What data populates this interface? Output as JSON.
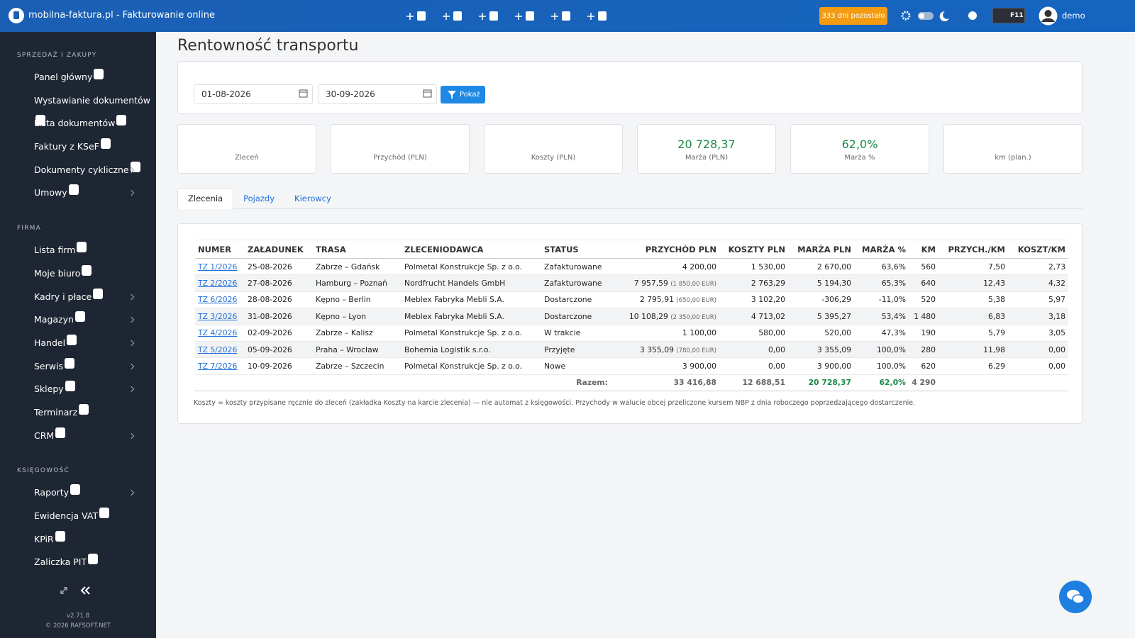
{
  "header": {
    "brand": "mobilna-faktura.pl - Fakturowanie online",
    "trial": "333 dni pozostało",
    "f11": "F11",
    "user": "demo"
  },
  "sidebar": {
    "sections": [
      {
        "title": "SPRZEDAŻ I ZAKUPY",
        "items": [
          {
            "label": "Panel główny"
          },
          {
            "label": "Wystawianie dokumentów"
          },
          {
            "label": "Lista dokumentów"
          },
          {
            "label": "Faktury z KSeF"
          },
          {
            "label": "Dokumenty cykliczne",
            "submenu": true
          },
          {
            "label": "Umowy",
            "submenu": true
          }
        ]
      },
      {
        "title": "FIRMA",
        "items": [
          {
            "label": "Lista firm"
          },
          {
            "label": "Moje biuro"
          },
          {
            "label": "Kadry i płace",
            "submenu": true
          },
          {
            "label": "Magazyn",
            "submenu": true
          },
          {
            "label": "Handel",
            "submenu": true
          },
          {
            "label": "Serwis",
            "submenu": true
          },
          {
            "label": "Sklepy",
            "submenu": true
          },
          {
            "label": "Terminarz"
          },
          {
            "label": "CRM",
            "submenu": true
          }
        ]
      },
      {
        "title": "KSIĘGOWOŚĆ",
        "items": [
          {
            "label": "Raporty",
            "submenu": true
          },
          {
            "label": "Ewidencja VAT"
          },
          {
            "label": "KPiR"
          },
          {
            "label": "Zaliczka PIT"
          }
        ]
      }
    ],
    "version": "v2.71.8",
    "copyright": "© 2026 RAFSOFT.NET"
  },
  "page": {
    "title": "Rentowność transportu",
    "date_from": "01-08-2026",
    "date_to": "30-09-2026",
    "show_button": "Pokaż"
  },
  "stats": [
    {
      "label": "Zleceń"
    },
    {
      "label": "Przychód (PLN)"
    },
    {
      "label": "Koszty (PLN)"
    },
    {
      "value": "20 728,37",
      "label": "Marża (PLN)"
    },
    {
      "value": "62,0%",
      "label": "Marża %"
    },
    {
      "label": "km (plan.)"
    }
  ],
  "tabs": [
    "Zlecenia",
    "Pojazdy",
    "Kierowcy"
  ],
  "table": {
    "headers": [
      "NUMER",
      "ZAŁADUNEK",
      "TRASA",
      "ZLECENIODAWCA",
      "STATUS",
      "PRZYCHÓD PLN",
      "KOSZTY PLN",
      "MARŻA PLN",
      "MARŻA %",
      "KM",
      "PRZYCH./KM",
      "KOSZT/KM"
    ],
    "rows": [
      {
        "cells": [
          "TZ 1/2026",
          "25-08-2026",
          "Zabrze – Gdańsk",
          "Polmetal Konstrukcje Sp. z o.o.",
          "Zafakturowane",
          "4 200,00",
          "1 530,00",
          "2 670,00",
          "63,6%",
          "560",
          "7,50",
          "2,73"
        ]
      },
      {
        "cells": [
          "TZ 2/2026",
          "27-08-2026",
          "Hamburg – Poznań",
          "Nordfrucht Handels GmbH",
          "Zafakturowane",
          "7 957,59",
          "2 763,29",
          "5 194,30",
          "65,3%",
          "640",
          "12,43",
          "4,32"
        ],
        "foreign": "(1 850,00 EUR)"
      },
      {
        "cells": [
          "TZ 6/2026",
          "28-08-2026",
          "Kępno – Berlin",
          "Meblex Fabryka Mebli S.A.",
          "Dostarczone",
          "2 795,91",
          "3 102,20",
          "-306,29",
          "-11,0%",
          "520",
          "5,38",
          "5,97"
        ],
        "foreign": "(650,00 EUR)"
      },
      {
        "cells": [
          "TZ 3/2026",
          "31-08-2026",
          "Kępno – Lyon",
          "Meblex Fabryka Mebli S.A.",
          "Dostarczone",
          "10 108,29",
          "4 713,02",
          "5 395,27",
          "53,4%",
          "1 480",
          "6,83",
          "3,18"
        ],
        "foreign": "(2 350,00 EUR)"
      },
      {
        "cells": [
          "TZ 4/2026",
          "02-09-2026",
          "Zabrze – Kalisz",
          "Polmetal Konstrukcje Sp. z o.o.",
          "W trakcie",
          "1 100,00",
          "580,00",
          "520,00",
          "47,3%",
          "190",
          "5,79",
          "3,05"
        ]
      },
      {
        "cells": [
          "TZ 5/2026",
          "05-09-2026",
          "Praha – Wrocław",
          "Bohemia Logistik s.r.o.",
          "Przyjęte",
          "3 355,09",
          "0,00",
          "3 355,09",
          "100,0%",
          "280",
          "11,98",
          "0,00"
        ],
        "foreign": "(780,00 EUR)"
      },
      {
        "cells": [
          "TZ 7/2026",
          "10-09-2026",
          "Zabrze – Szczecin",
          "Polmetal Konstrukcje Sp. z o.o.",
          "Nowe",
          "3 900,00",
          "0,00",
          "3 900,00",
          "100,0%",
          "620",
          "6,29",
          "0,00"
        ]
      }
    ],
    "total": {
      "label": "Razem:",
      "revenue": "33 416,88",
      "costs": "12 688,51",
      "margin": "20 728,37",
      "margin_pct": "62,0%",
      "km": "4 290"
    },
    "note": "Koszty = koszty przypisane ręcznie do zleceń (zakładka Koszty na karcie zlecenia) — nie automat z księgowości. Przychody w walucie obcej przeliczone kursem NBP z dnia roboczego poprzedzającego dostarczenie."
  }
}
